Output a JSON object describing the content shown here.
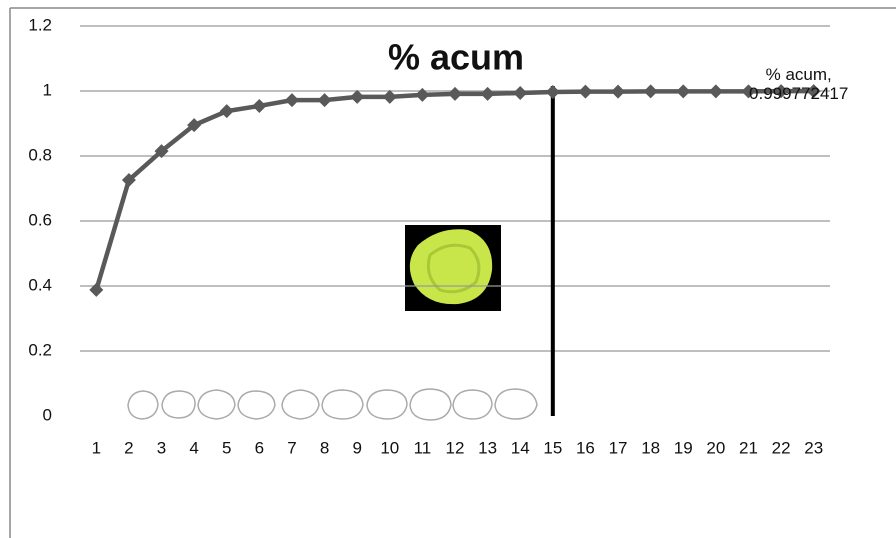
{
  "chart_data": {
    "type": "line",
    "title": "% acum",
    "categories": [
      "1",
      "2",
      "3",
      "4",
      "5",
      "6",
      "7",
      "8",
      "9",
      "10",
      "11",
      "12",
      "13",
      "14",
      "15",
      "16",
      "17",
      "18",
      "19",
      "20",
      "21",
      "22",
      "23"
    ],
    "series": [
      {
        "name": "% acum",
        "color": "#595959",
        "values": [
          0.388,
          0.726,
          0.815,
          0.895,
          0.938,
          0.954,
          0.972,
          0.972,
          0.982,
          0.982,
          0.988,
          0.991,
          0.991,
          0.994,
          0.997,
          0.998,
          0.998,
          0.999,
          0.999,
          0.999,
          0.999,
          0.9995,
          0.999772417
        ],
        "value_labels": [
          null,
          null,
          null,
          null,
          null,
          null,
          null,
          null,
          null,
          null,
          null,
          null,
          null,
          null,
          null,
          null,
          null,
          null,
          null,
          null,
          null,
          null,
          "% acum, 0.999772417"
        ]
      }
    ],
    "ylim": [
      0,
      1.2
    ],
    "yticks": [
      0,
      0.2,
      0.4,
      0.6,
      0.8,
      1,
      1.2
    ],
    "grid": true,
    "reference_line": {
      "category": "15",
      "color": "#000000"
    }
  }
}
